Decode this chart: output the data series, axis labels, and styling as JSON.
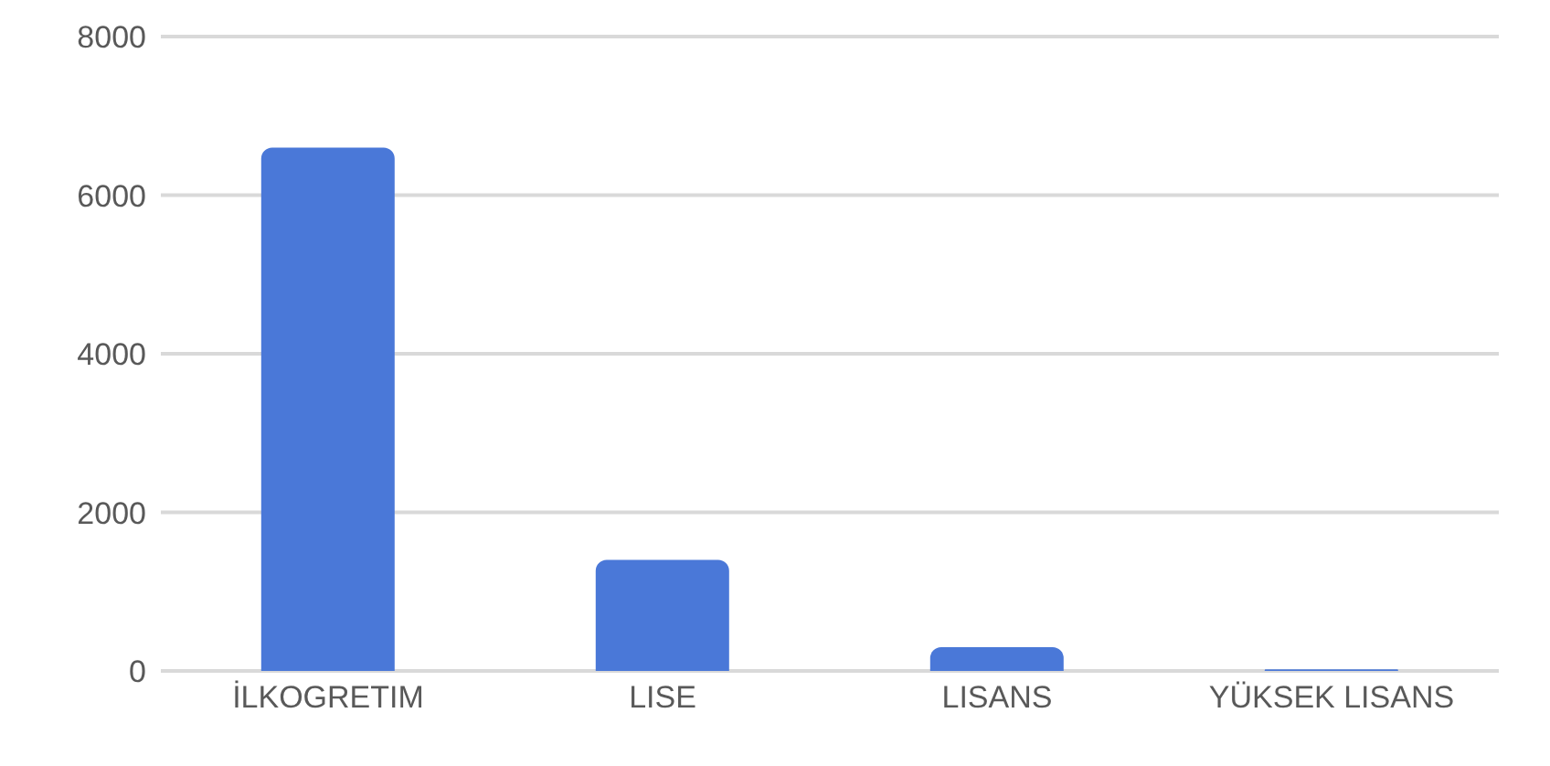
{
  "chart_data": {
    "type": "bar",
    "categories": [
      "İLKOGRETIM",
      "LISE",
      "LISANS",
      "YÜKSEK LISANS"
    ],
    "values": [
      6600,
      1400,
      300,
      20
    ],
    "color": "#4a78d8",
    "ylim": [
      0,
      8000
    ],
    "yticks": [
      0,
      2000,
      4000,
      6000,
      8000
    ],
    "grid": "y"
  }
}
